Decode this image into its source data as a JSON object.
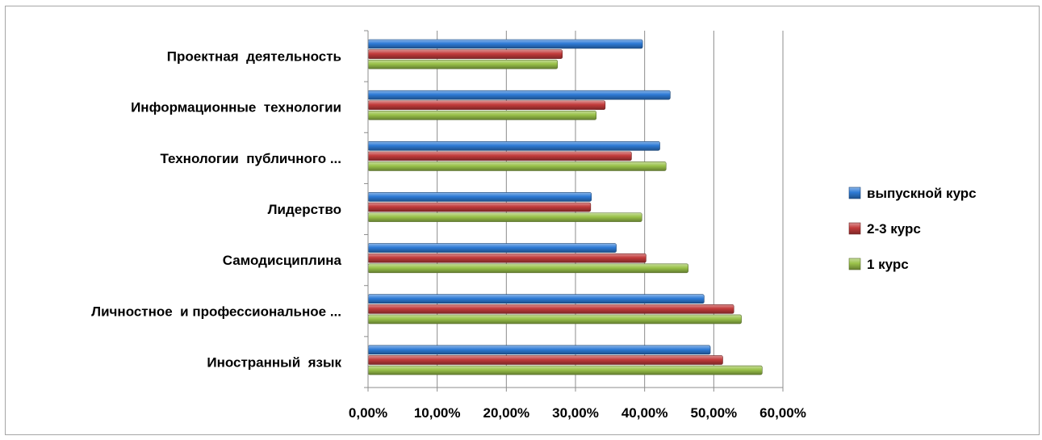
{
  "chart_data": {
    "type": "bar",
    "orientation": "horizontal",
    "categories": [
      "Проектная  деятельность",
      "Информационные  технологии",
      "Технологии  публичного ...",
      "Лидерство",
      "Самодисциплина",
      "Личностное  и профессиональное ...",
      "Иностранный  язык"
    ],
    "series": [
      {
        "name": "выпускной курс",
        "color": "#2e7bd6",
        "values": [
          39.7,
          43.7,
          42.2,
          32.3,
          35.9,
          48.6,
          49.5
        ]
      },
      {
        "name": "2-3 курс",
        "color": "#c23b3b",
        "values": [
          28.1,
          34.3,
          38.1,
          32.2,
          40.2,
          52.9,
          51.3
        ]
      },
      {
        "name": "1 курс",
        "color": "#9ac24a",
        "values": [
          27.4,
          33.0,
          43.1,
          39.6,
          46.3,
          54.0,
          57.0
        ]
      }
    ],
    "xlim": [
      0,
      60
    ],
    "xticks": [
      "0,00%",
      "10,00%",
      "20,00%",
      "30,00%",
      "40,00%",
      "50,00%",
      "60,00%"
    ],
    "grid": true,
    "legend_position": "right",
    "title": "",
    "xlabel": "",
    "ylabel": ""
  }
}
